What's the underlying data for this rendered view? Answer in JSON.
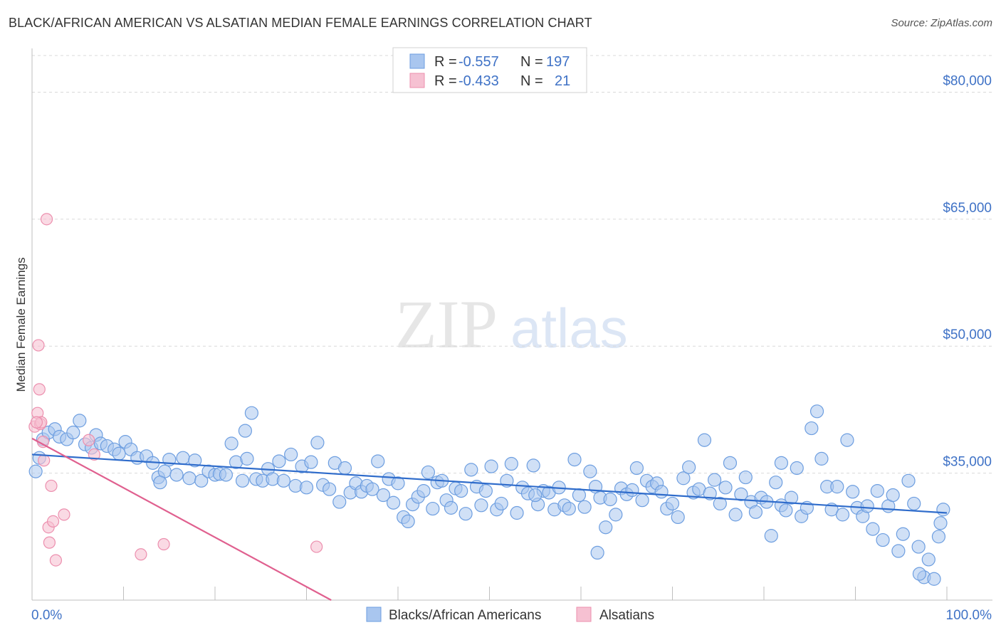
{
  "title": "BLACK/AFRICAN AMERICAN VS ALSATIAN MEDIAN FEMALE EARNINGS CORRELATION CHART",
  "source": "Source: ZipAtlas.com",
  "watermark": {
    "zip": "ZIP",
    "atlas": "atlas"
  },
  "colors": {
    "blue_fill": "#a9c6ef",
    "blue_stroke": "#6d9ee0",
    "blue_line": "#2f6ccb",
    "pink_fill": "#f6c1d2",
    "pink_stroke": "#ec8fae",
    "pink_line": "#e0608f",
    "tick_text": "#3f72c6",
    "grid": "#d9d9d9"
  },
  "legend": {
    "rows": [
      {
        "r_label": "R =",
        "r_value": "-0.557",
        "n_label": "N =",
        "n_value": "197"
      },
      {
        "r_label": "R =",
        "r_value": "-0.433",
        "n_label": "N =",
        "n_value": "21"
      }
    ]
  },
  "chart_data": {
    "type": "scatter",
    "title": "BLACK/AFRICAN AMERICAN VS ALSATIAN MEDIAN FEMALE EARNINGS CORRELATION CHART",
    "xlabel": "",
    "ylabel": "Median Female Earnings",
    "xlim": [
      0,
      100
    ],
    "ylim": [
      20000,
      85000
    ],
    "x_tick_labels": [
      "0.0%",
      "100.0%"
    ],
    "y_ticks": [
      35000,
      50000,
      65000,
      80000
    ],
    "y_tick_labels": [
      "$35,000",
      "$50,000",
      "$65,000",
      "$80,000"
    ],
    "grid": "horizontal dashed",
    "legend_position": "bottom-center",
    "series": [
      {
        "name": "Blacks/African Americans",
        "trend": {
          "x": [
            0,
            100
          ],
          "y": [
            37200,
            30300
          ]
        },
        "points": [
          [
            0.4,
            35200
          ],
          [
            0.8,
            36800
          ],
          [
            1.2,
            39000
          ],
          [
            1.8,
            39800
          ],
          [
            2.5,
            40200
          ],
          [
            3,
            39300
          ],
          [
            3.8,
            39000
          ],
          [
            4.5,
            39800
          ],
          [
            5.2,
            41200
          ],
          [
            5.8,
            38400
          ],
          [
            6.5,
            38000
          ],
          [
            7,
            39500
          ],
          [
            7.5,
            38500
          ],
          [
            8.2,
            38200
          ],
          [
            9,
            37800
          ],
          [
            9.5,
            37300
          ],
          [
            10.2,
            38700
          ],
          [
            10.8,
            37800
          ],
          [
            11.5,
            36800
          ],
          [
            12.5,
            37000
          ],
          [
            13.2,
            36200
          ],
          [
            13.8,
            34500
          ],
          [
            14.5,
            35200
          ],
          [
            15,
            36600
          ],
          [
            15.8,
            34800
          ],
          [
            16.5,
            36800
          ],
          [
            17.2,
            34400
          ],
          [
            17.8,
            36500
          ],
          [
            18.5,
            34100
          ],
          [
            19.3,
            35200
          ],
          [
            20,
            34800
          ],
          [
            20.5,
            34900
          ],
          [
            21.2,
            34800
          ],
          [
            21.8,
            38500
          ],
          [
            22.3,
            36300
          ],
          [
            23,
            34100
          ],
          [
            23.5,
            36700
          ],
          [
            24,
            42100
          ],
          [
            24.5,
            34300
          ],
          [
            25.2,
            34100
          ],
          [
            25.8,
            35500
          ],
          [
            26.3,
            34300
          ],
          [
            27,
            36400
          ],
          [
            27.5,
            34100
          ],
          [
            28.3,
            37200
          ],
          [
            28.8,
            33500
          ],
          [
            29.5,
            35800
          ],
          [
            30,
            33300
          ],
          [
            30.5,
            36300
          ],
          [
            31.2,
            38600
          ],
          [
            31.8,
            33600
          ],
          [
            32.5,
            33100
          ],
          [
            33.1,
            36200
          ],
          [
            33.6,
            31600
          ],
          [
            34.2,
            35600
          ],
          [
            34.8,
            32700
          ],
          [
            35.4,
            33800
          ],
          [
            36,
            32800
          ],
          [
            36.6,
            33500
          ],
          [
            37.2,
            33100
          ],
          [
            37.8,
            36400
          ],
          [
            38.4,
            32400
          ],
          [
            39,
            34300
          ],
          [
            39.5,
            31500
          ],
          [
            40,
            33800
          ],
          [
            40.6,
            29800
          ],
          [
            41.1,
            29300
          ],
          [
            41.6,
            31300
          ],
          [
            42.2,
            32200
          ],
          [
            42.8,
            32900
          ],
          [
            43.3,
            35100
          ],
          [
            43.8,
            30800
          ],
          [
            44.3,
            33900
          ],
          [
            44.8,
            34100
          ],
          [
            45.3,
            31800
          ],
          [
            45.8,
            30900
          ],
          [
            46.3,
            33200
          ],
          [
            46.9,
            32900
          ],
          [
            47.4,
            30200
          ],
          [
            48,
            35400
          ],
          [
            48.6,
            33400
          ],
          [
            49.1,
            31200
          ],
          [
            49.6,
            32900
          ],
          [
            50.2,
            35800
          ],
          [
            50.8,
            30700
          ],
          [
            51.3,
            31400
          ],
          [
            51.9,
            34100
          ],
          [
            52.4,
            36100
          ],
          [
            53,
            30300
          ],
          [
            53.6,
            33300
          ],
          [
            54.2,
            32600
          ],
          [
            54.8,
            35900
          ],
          [
            55.3,
            31300
          ],
          [
            55.9,
            32900
          ],
          [
            56.5,
            32700
          ],
          [
            57.1,
            30700
          ],
          [
            57.6,
            33300
          ],
          [
            58.2,
            31200
          ],
          [
            58.7,
            30800
          ],
          [
            59.3,
            36600
          ],
          [
            59.8,
            32400
          ],
          [
            60.4,
            31000
          ],
          [
            61,
            35200
          ],
          [
            61.6,
            33400
          ],
          [
            62.1,
            32100
          ],
          [
            62.7,
            28600
          ],
          [
            63.2,
            31900
          ],
          [
            63.8,
            30100
          ],
          [
            64.4,
            33200
          ],
          [
            65,
            32500
          ],
          [
            65.6,
            33000
          ],
          [
            66.1,
            35600
          ],
          [
            66.7,
            31800
          ],
          [
            67.2,
            34100
          ],
          [
            67.8,
            33400
          ],
          [
            68.3,
            33800
          ],
          [
            68.8,
            32800
          ],
          [
            69.4,
            30800
          ],
          [
            70,
            31400
          ],
          [
            70.6,
            29800
          ],
          [
            71.2,
            34400
          ],
          [
            71.8,
            35700
          ],
          [
            72.3,
            32700
          ],
          [
            72.9,
            33100
          ],
          [
            73.5,
            38900
          ],
          [
            74.1,
            32600
          ],
          [
            74.6,
            34200
          ],
          [
            75.2,
            31400
          ],
          [
            75.8,
            33300
          ],
          [
            76.3,
            36200
          ],
          [
            76.9,
            30100
          ],
          [
            77.5,
            32500
          ],
          [
            78,
            34500
          ],
          [
            78.6,
            31600
          ],
          [
            79.1,
            30400
          ],
          [
            79.7,
            32100
          ],
          [
            80.3,
            31600
          ],
          [
            80.8,
            27600
          ],
          [
            81.3,
            33900
          ],
          [
            81.9,
            31200
          ],
          [
            82.4,
            30600
          ],
          [
            83,
            32100
          ],
          [
            83.6,
            35600
          ],
          [
            84.1,
            29900
          ],
          [
            84.7,
            30900
          ],
          [
            85.2,
            40300
          ],
          [
            85.8,
            42300
          ],
          [
            86.3,
            36700
          ],
          [
            86.9,
            33400
          ],
          [
            87.4,
            30700
          ],
          [
            88,
            33400
          ],
          [
            88.6,
            30100
          ],
          [
            89.1,
            38900
          ],
          [
            89.7,
            32800
          ],
          [
            90.2,
            30900
          ],
          [
            90.8,
            29900
          ],
          [
            91.3,
            31100
          ],
          [
            91.9,
            28400
          ],
          [
            92.4,
            32900
          ],
          [
            93,
            27100
          ],
          [
            93.6,
            31100
          ],
          [
            94.1,
            32400
          ],
          [
            94.7,
            25800
          ],
          [
            95.2,
            27800
          ],
          [
            95.8,
            34100
          ],
          [
            96.4,
            31400
          ],
          [
            96.9,
            26300
          ],
          [
            97.5,
            22700
          ],
          [
            98,
            24800
          ],
          [
            98.6,
            22500
          ],
          [
            99.1,
            27500
          ],
          [
            99.6,
            30700
          ],
          [
            97,
            23100
          ],
          [
            14,
            33900
          ],
          [
            23.3,
            40000
          ],
          [
            55,
            32400
          ],
          [
            61.8,
            25600
          ],
          [
            81.9,
            36200
          ],
          [
            99.3,
            29100
          ]
        ]
      },
      {
        "name": "Alsatians",
        "trend": {
          "x": [
            0,
            32.7
          ],
          "y": [
            39100,
            20000
          ]
        },
        "points": [
          [
            0.3,
            40500
          ],
          [
            0.6,
            42100
          ],
          [
            0.7,
            50100
          ],
          [
            0.8,
            44900
          ],
          [
            0.9,
            40800
          ],
          [
            1,
            41000
          ],
          [
            1.2,
            38700
          ],
          [
            1.3,
            36500
          ],
          [
            1.6,
            65000
          ],
          [
            1.8,
            28600
          ],
          [
            1.9,
            26800
          ],
          [
            2.1,
            33500
          ],
          [
            2.3,
            29300
          ],
          [
            2.6,
            24700
          ],
          [
            3.5,
            30100
          ],
          [
            6.2,
            38900
          ],
          [
            6.8,
            37200
          ],
          [
            11.9,
            25400
          ],
          [
            14.4,
            26600
          ],
          [
            31.1,
            26300
          ],
          [
            0.5,
            41000
          ]
        ]
      }
    ]
  }
}
